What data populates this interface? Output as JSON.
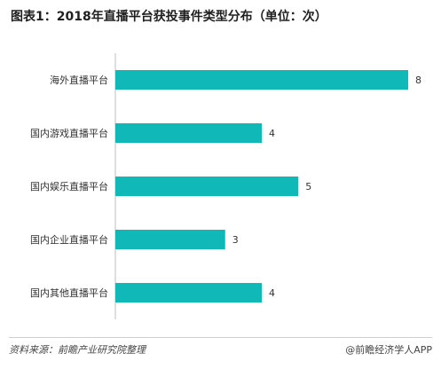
{
  "title": "图表1：2018年直播平台获投事件类型分布（单位：次）",
  "source": "资料来源：前瞻产业研究院整理",
  "brand": "@前瞻经济学人APP",
  "bar_color": "#10b9b8",
  "chart_data": {
    "type": "bar",
    "orientation": "horizontal",
    "title": "图表1：2018年直播平台获投事件类型分布（单位：次）",
    "categories": [
      "海外直播平台",
      "国内游戏直播平台",
      "国内娱乐直播平台",
      "国内企业直播平台",
      "国内其他直播平台"
    ],
    "values": [
      8,
      4,
      5,
      3,
      4
    ],
    "unit": "次",
    "xlim": [
      0,
      8
    ],
    "grid": false,
    "legend": "none"
  }
}
